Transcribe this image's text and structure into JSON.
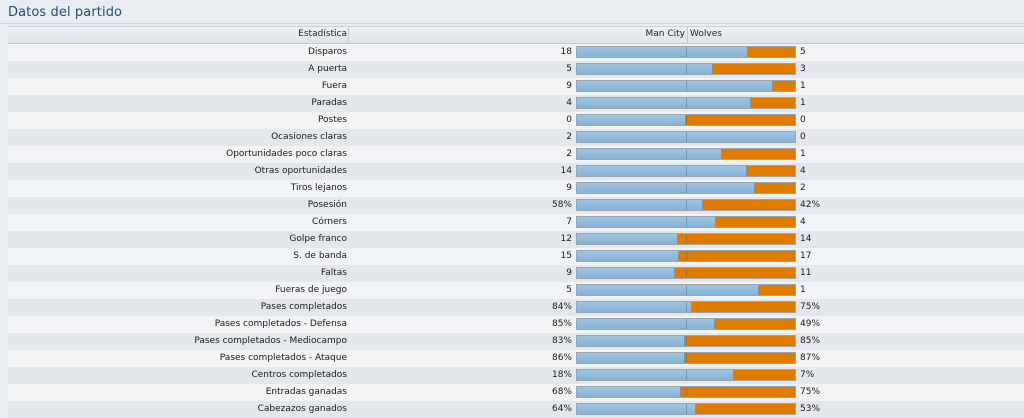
{
  "panel": {
    "title": "Datos del partido"
  },
  "header": {
    "stat": "Estadística",
    "home": "Man City",
    "away": "Wolves"
  },
  "colors": {
    "home": "#8fb9dc",
    "away": "#e07b00",
    "title": "#2a4a78"
  },
  "rows": [
    {
      "label": "Disparos",
      "home": "18",
      "away": "5",
      "home_share": 0.783
    },
    {
      "label": "A puerta",
      "home": "5",
      "away": "3",
      "home_share": 0.625
    },
    {
      "label": "Fuera",
      "home": "9",
      "away": "1",
      "home_share": 0.9
    },
    {
      "label": "Paradas",
      "home": "4",
      "away": "1",
      "home_share": 0.8
    },
    {
      "label": "Postes",
      "home": "0",
      "away": "0",
      "home_share": 0.5
    },
    {
      "label": "Ocasiones claras",
      "home": "2",
      "away": "0",
      "home_share": 1.0
    },
    {
      "label": "Oportunidades poco claras",
      "home": "2",
      "away": "1",
      "home_share": 0.667
    },
    {
      "label": "Otras oportunidades",
      "home": "14",
      "away": "4",
      "home_share": 0.778
    },
    {
      "label": "Tiros lejanos",
      "home": "9",
      "away": "2",
      "home_share": 0.818
    },
    {
      "label": "Posesión",
      "home": "58%",
      "away": "42%",
      "home_share": 0.58
    },
    {
      "label": "Córners",
      "home": "7",
      "away": "4",
      "home_share": 0.636
    },
    {
      "label": "Golpe franco",
      "home": "12",
      "away": "14",
      "home_share": 0.462
    },
    {
      "label": "S. de banda",
      "home": "15",
      "away": "17",
      "home_share": 0.469
    },
    {
      "label": "Faltas",
      "home": "9",
      "away": "11",
      "home_share": 0.45
    },
    {
      "label": "Fueras de juego",
      "home": "5",
      "away": "1",
      "home_share": 0.833
    },
    {
      "label": "Pases completados",
      "home": "84%",
      "away": "75%",
      "home_share": 0.528
    },
    {
      "label": "Pases completados - Defensa",
      "home": "85%",
      "away": "49%",
      "home_share": 0.634
    },
    {
      "label": "Pases completados - Mediocampo",
      "home": "83%",
      "away": "85%",
      "home_share": 0.494
    },
    {
      "label": "Pases completados - Ataque",
      "home": "86%",
      "away": "87%",
      "home_share": 0.497
    },
    {
      "label": "Centros completados",
      "home": "18%",
      "away": "7%",
      "home_share": 0.72
    },
    {
      "label": "Entradas ganadas",
      "home": "68%",
      "away": "75%",
      "home_share": 0.476
    },
    {
      "label": "Cabezazos ganados",
      "home": "64%",
      "away": "53%",
      "home_share": 0.547
    }
  ]
}
